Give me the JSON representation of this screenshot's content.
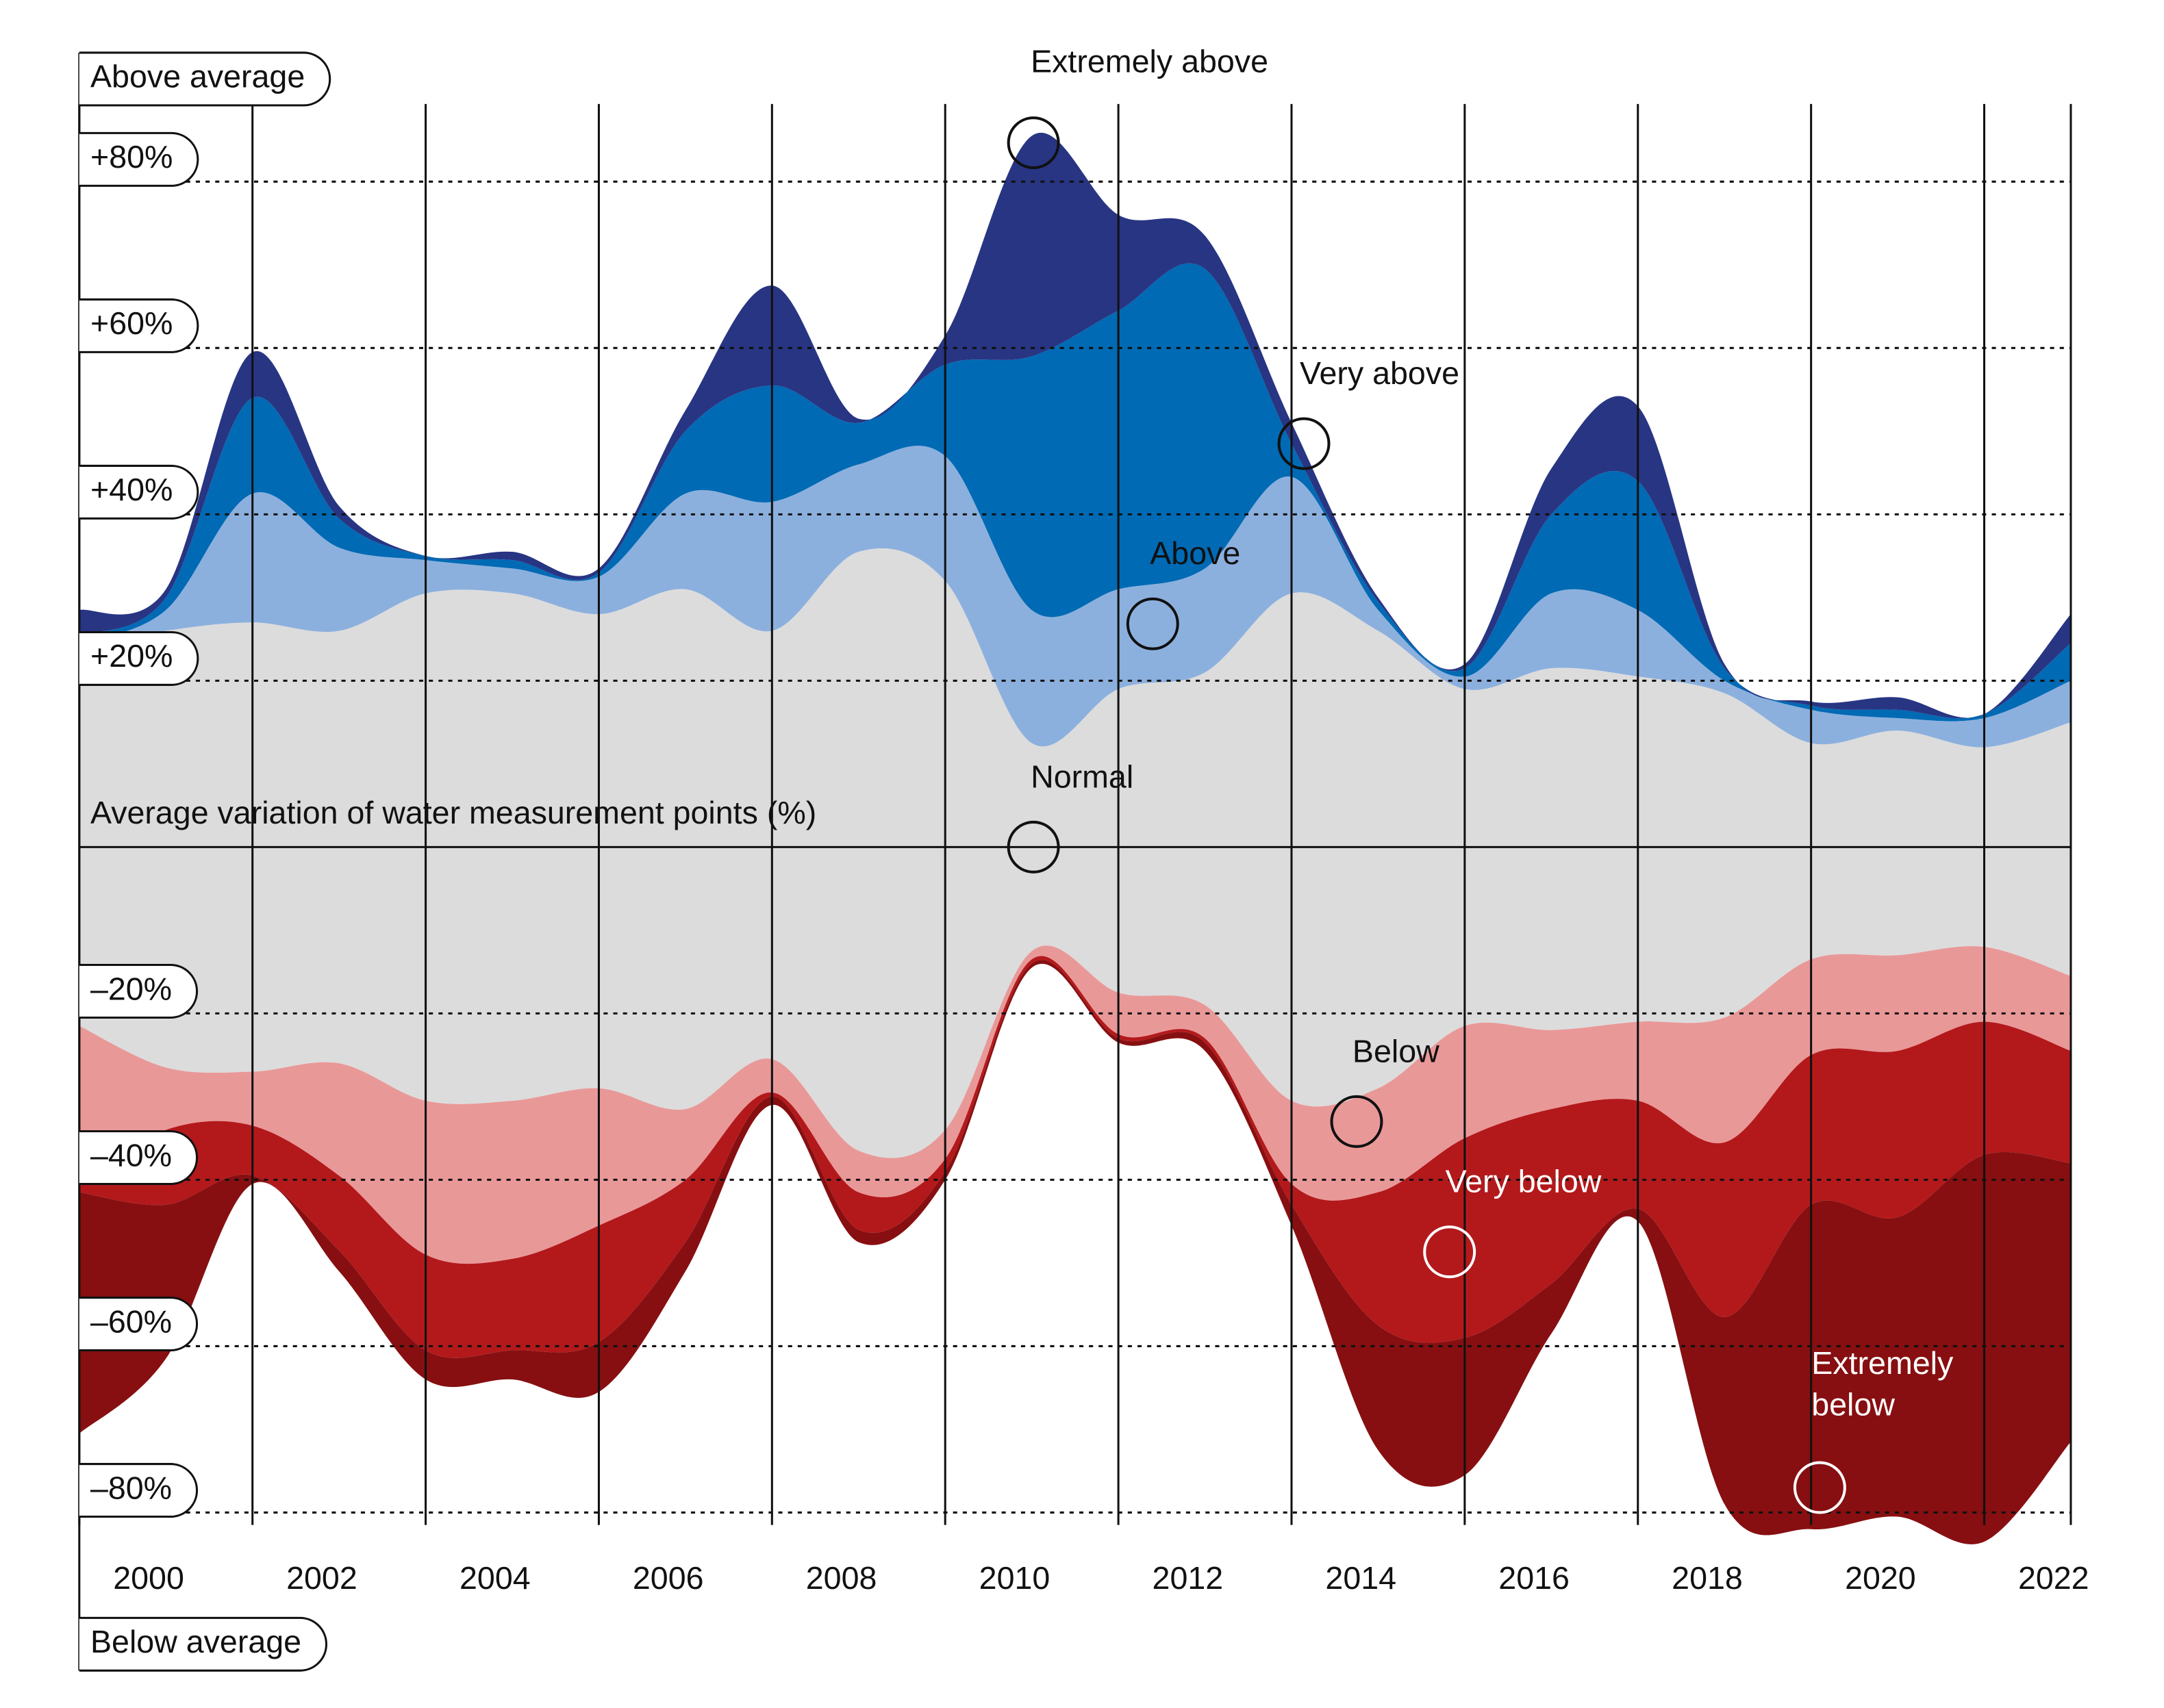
{
  "chart_data": {
    "type": "stacked-area",
    "y_label_top": "Above average",
    "y_label_bottom": "Below average",
    "zero_label": "Average variation of water measurement points (%)",
    "x": [
      2000,
      2001,
      2002,
      2003,
      2004,
      2005,
      2006,
      2007,
      2008,
      2009,
      2010,
      2011,
      2012,
      2013,
      2014,
      2015,
      2016,
      2017,
      2018,
      2019,
      2020,
      2021,
      2022,
      2023
    ],
    "xlim": [
      2000,
      2023
    ],
    "xticks": [
      2000,
      2002,
      2004,
      2006,
      2008,
      2010,
      2012,
      2014,
      2016,
      2018,
      2020,
      2022
    ],
    "ylim": [
      -84,
      96
    ],
    "yticks": [
      {
        "value": 80,
        "label": "+80%"
      },
      {
        "value": 60,
        "label": "+60%"
      },
      {
        "value": 40,
        "label": "+40%"
      },
      {
        "value": 20,
        "label": "+20%"
      },
      {
        "value": -20,
        "label": "–20%"
      },
      {
        "value": -40,
        "label": "–40%"
      },
      {
        "value": -60,
        "label": "–60%"
      },
      {
        "value": -80,
        "label": "–80%"
      }
    ],
    "grid": true,
    "series": [
      {
        "name": "Normal",
        "color": "#dcdcdc",
        "stack": "both",
        "values": [
          24,
          26,
          27,
          26,
          30.5,
          30.5,
          28,
          31,
          26,
          35.5,
          32,
          12.5,
          19,
          21,
          30.5,
          26,
          19,
          21.5,
          20.5,
          18.5,
          12.5,
          14,
          12,
          15
        ],
        "lows": [
          -21.5,
          -26.5,
          -27,
          -26,
          -30.5,
          -30.5,
          -29,
          -31.5,
          -25.5,
          -36.5,
          -34,
          -12.5,
          -17.5,
          -19,
          -30.5,
          -29,
          -21.5,
          -22,
          -21,
          -20.5,
          -13.5,
          -13,
          -12,
          -15.5
        ]
      },
      {
        "name": "Above",
        "color": "#8cb0de",
        "stack": "above",
        "values": [
          0.5,
          2.5,
          15.5,
          10,
          4,
          3,
          4.5,
          11.5,
          15.5,
          10.5,
          15,
          16,
          12,
          12.5,
          14,
          2.5,
          1.5,
          9,
          8,
          1.5,
          4,
          1.5,
          3.5,
          5
        ]
      },
      {
        "name": "Very above",
        "color": "#006ab4",
        "stack": "above",
        "values": [
          1,
          1.5,
          11.5,
          3.5,
          0.5,
          1,
          0.5,
          7.5,
          14,
          5,
          11,
          30.5,
          33.5,
          36,
          4,
          1,
          1,
          9.5,
          15.5,
          1.5,
          0.5,
          1,
          0.5,
          4.5
        ]
      },
      {
        "name": "Extremely above",
        "color": "#283583",
        "stack": "above",
        "values": [
          3,
          1,
          5.5,
          1.5,
          0,
          1,
          0.5,
          2.5,
          12,
          0.5,
          3.5,
          26.5,
          11.5,
          4,
          2.5,
          0.5,
          0.5,
          5.5,
          9,
          0.5,
          0.5,
          1.5,
          0,
          3.5
        ]
      },
      {
        "name": "Below",
        "color": "#e99898",
        "stack": "below",
        "values": [
          -19,
          -7.5,
          -6.5,
          -13.5,
          -18.5,
          -19,
          -16.5,
          -8.5,
          -4,
          -5,
          -3.5,
          -1,
          -5,
          -4,
          -10,
          -12.5,
          -13.5,
          -9.5,
          -9.5,
          -15,
          -11.5,
          -11.5,
          -9,
          -9
        ]
      },
      {
        "name": "Very below",
        "color": "#b3191b",
        "stack": "below",
        "values": [
          -1,
          -9,
          -6,
          -9,
          -11.5,
          -11,
          -14,
          -7.5,
          -0.5,
          -4.5,
          -1.5,
          -0.5,
          -0.5,
          -0.5,
          -2.5,
          -16,
          -24,
          -21,
          -13,
          -21,
          -18,
          -20,
          -16,
          -13.5
        ]
      },
      {
        "name": "Extremely below",
        "color": "#870f11",
        "stack": "below",
        "values": [
          -29,
          -18.5,
          -1,
          -2.5,
          -3.5,
          -3.5,
          -6,
          -3.5,
          -1,
          -1.5,
          -1,
          -0.5,
          -0.5,
          -1,
          -2.5,
          -15,
          -16.5,
          -6,
          -1.5,
          -22.5,
          -39,
          -36,
          -46.5,
          -33.5
        ]
      }
    ]
  }
}
